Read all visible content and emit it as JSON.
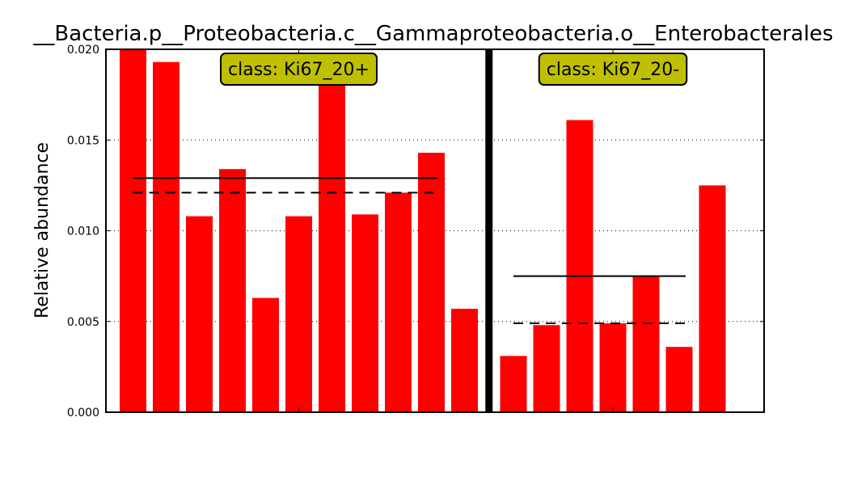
{
  "chart_data": {
    "type": "bar",
    "title": "__Bacteria.p__Proteobacteria.c__Gammaproteobacteria.o__Enterobacterales",
    "ylabel": "Relative abundance",
    "xlabel": "",
    "ylim": [
      0,
      0.02
    ],
    "yticks": [
      "0.000",
      "0.005",
      "0.010",
      "0.015",
      "0.020"
    ],
    "grid": "horizontal dotted",
    "colors": {
      "bar": "#ff0000",
      "separator": "#000000",
      "label_box": "#bfbf00"
    },
    "groups": [
      {
        "label": "class: Ki67_20+",
        "values": [
          0.0202,
          0.0193,
          0.0108,
          0.0134,
          0.0063,
          0.0108,
          0.0188,
          0.0109,
          0.0121,
          0.0143,
          0.0057
        ],
        "mean": 0.0129,
        "median": 0.0121
      },
      {
        "label": "class: Ki67_20-",
        "values": [
          0.0031,
          0.0048,
          0.0161,
          0.0049,
          0.0075,
          0.0036,
          0.0125
        ],
        "mean": 0.0075,
        "median": 0.0049
      }
    ]
  }
}
